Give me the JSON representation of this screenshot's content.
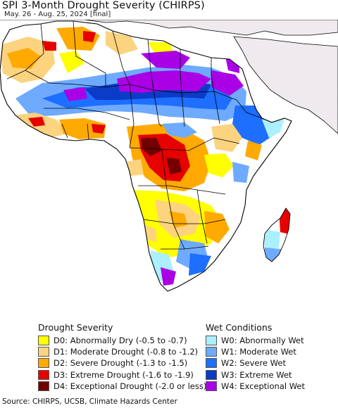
{
  "title": "SPI 3-Month Drought Severity (CHIRPS)",
  "subtitle": "May. 26 - Aug. 25, 2024 [final]",
  "legend": {
    "drought": {
      "heading": "Drought Severity",
      "items": [
        {
          "label": "D0: Abnormally Dry (-0.5 to -0.7)",
          "color": "#FFFF00"
        },
        {
          "label": "D1: Moderate Drought (-0.8 to -1.2)",
          "color": "#FCD37F"
        },
        {
          "label": "D2: Severe Drought (-1.3 to -1.5)",
          "color": "#FFAA00"
        },
        {
          "label": "D3: Extreme Drought (-1.6 to -1.9)",
          "color": "#E60000"
        },
        {
          "label": "D4: Exceptional Drought (-2.0 or less)",
          "color": "#730000"
        }
      ]
    },
    "wet": {
      "heading": "Wet Conditions",
      "items": [
        {
          "label": "W0: Abnormally Wet",
          "color": "#AAF0FF"
        },
        {
          "label": "W1: Moderate Wet",
          "color": "#6EAAFF"
        },
        {
          "label": "W2: Severe Wet",
          "color": "#1E6EFF"
        },
        {
          "label": "W3: Extreme Wet",
          "color": "#0A3CC8"
        },
        {
          "label": "W4: Exceptional Wet",
          "color": "#AA00E6"
        }
      ]
    }
  },
  "map_colors": {
    "ocean": "#FFFFFF",
    "other_land": "#EEEAEE",
    "normal_land": "#FFFFFF",
    "border": "#000000"
  },
  "source": "Source: CHIRPS, UCSB, Climate Hazards Center"
}
